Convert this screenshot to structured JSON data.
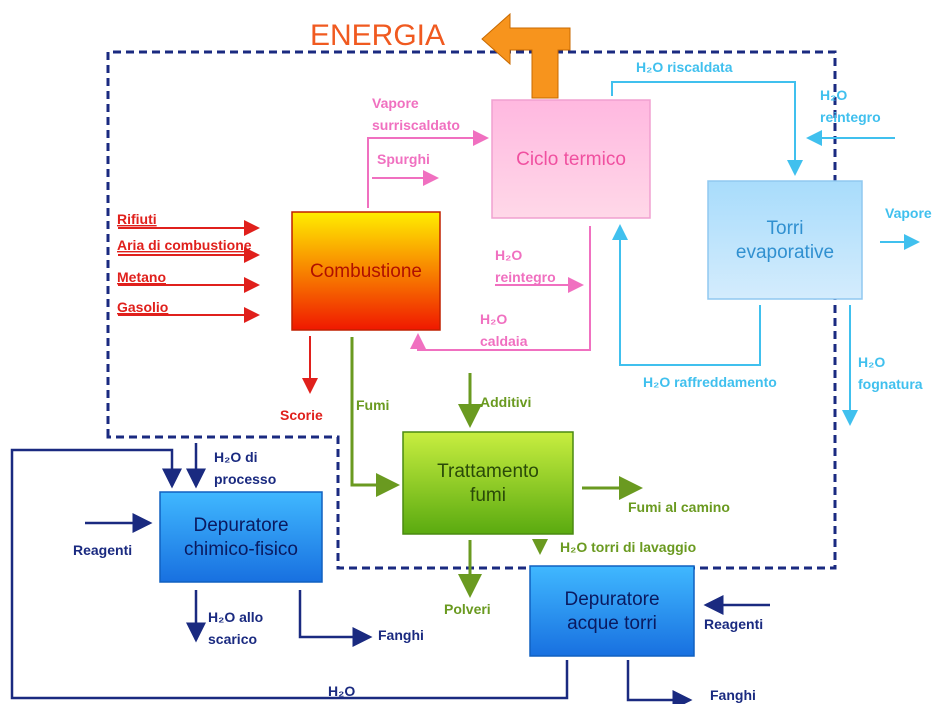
{
  "title": "ENERGIA",
  "nodes": [
    {
      "lines": [
        "Combustione"
      ]
    },
    {
      "lines": [
        "Ciclo termico"
      ]
    },
    {
      "lines": [
        "Torri",
        "evaporative"
      ]
    },
    {
      "lines": [
        "Trattamento",
        "fumi"
      ]
    },
    {
      "lines": [
        "Depuratore",
        "chimico-fisico"
      ]
    },
    {
      "lines": [
        "Depuratore",
        "acque torri"
      ]
    }
  ],
  "labels": [
    {
      "lines": [
        "Rifiuti"
      ]
    },
    {
      "lines": [
        "Aria di combustione"
      ]
    },
    {
      "lines": [
        "Metano"
      ]
    },
    {
      "lines": [
        "Gasolio"
      ]
    },
    {
      "lines": [
        "Scorie"
      ]
    },
    {
      "lines": [
        "Vapore",
        "surriscaldato"
      ]
    },
    {
      "lines": [
        "Spurghi"
      ]
    },
    {
      "lines": [
        "H₂O",
        "reintegro"
      ]
    },
    {
      "lines": [
        "H₂O",
        "caldaia"
      ]
    },
    {
      "lines": [
        "H₂O riscaldata"
      ]
    },
    {
      "lines": [
        "H₂O",
        "reintegro"
      ]
    },
    {
      "lines": [
        "Vapore"
      ]
    },
    {
      "lines": [
        "H₂O raffreddamento"
      ]
    },
    {
      "lines": [
        "H₂O",
        "fognatura"
      ]
    },
    {
      "lines": [
        "Fumi"
      ]
    },
    {
      "lines": [
        "Additivi"
      ]
    },
    {
      "lines": [
        "Fumi al camino"
      ]
    },
    {
      "lines": [
        "Polveri"
      ]
    },
    {
      "lines": [
        "H₂O torri di lavaggio"
      ]
    },
    {
      "lines": [
        "H₂O di",
        "processo"
      ]
    },
    {
      "lines": [
        "Reagenti"
      ]
    },
    {
      "lines": [
        "H₂O allo",
        "scarico"
      ]
    },
    {
      "lines": [
        "Fanghi"
      ]
    },
    {
      "lines": [
        "Reagenti"
      ]
    },
    {
      "lines": [
        "Fanghi"
      ]
    },
    {
      "lines": [
        "H₂O"
      ]
    }
  ]
}
